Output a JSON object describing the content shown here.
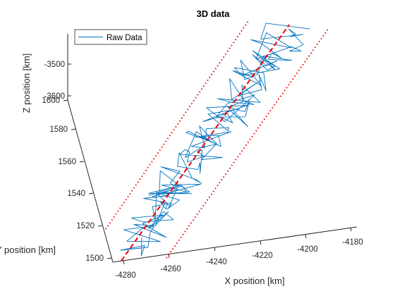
{
  "chart_data": {
    "type": "line3d",
    "title": "3D data",
    "xlabel": "X position [km]",
    "ylabel": "Y position [km]",
    "zlabel": "Z position [km]",
    "x_ticks": [
      "-4280",
      "-4260",
      "-4240",
      "-4220",
      "-4200",
      "-4180"
    ],
    "y_ticks": [
      "1500",
      "1520",
      "1540",
      "1560",
      "1580",
      "1600"
    ],
    "z_ticks": [
      "-3500",
      "-3600"
    ],
    "legend": {
      "location": "top-left",
      "entries": [
        "Raw Data"
      ]
    },
    "colors": {
      "raw": "#0072BD",
      "fit": "#EE0000",
      "axis": "#262626"
    },
    "fit_line": {
      "style": "dashed",
      "from": {
        "x": -4281,
        "y": 1505,
        "z": -3840
      },
      "to": {
        "x": -4205,
        "y": 1602,
        "z": -3440
      }
    },
    "bounds": {
      "style": "dotted"
    }
  }
}
